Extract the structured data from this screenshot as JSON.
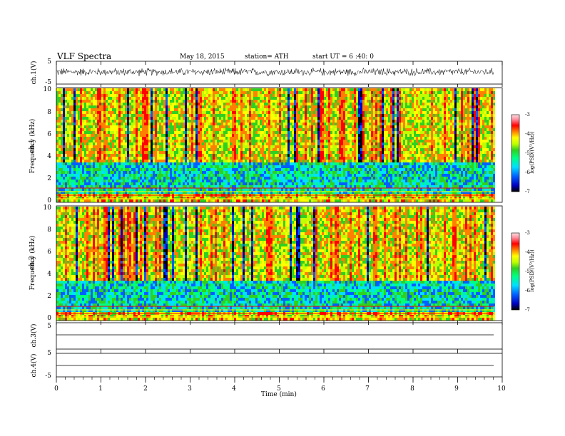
{
  "header": {
    "title": "VLF  Spectra",
    "date": "May 18, 2015",
    "station": "station= ATH",
    "start": "start  UT  =   6  :40: 0"
  },
  "axes": {
    "ch1_label": "ch.1(V)",
    "spec1_label": "Frequency  (kHz)",
    "spec1_ch": "ch.1",
    "spec2_label": "Frequency  (kHz)",
    "spec2_ch": "ch.2",
    "ch3_label": "ch.3(V)",
    "ch4_label": "ch.4(V)",
    "xlabel": "Time  (min)",
    "colorbar_label": "log(PSD/(V²/Hz))"
  },
  "ticks": {
    "wave_top": "5",
    "wave_bottom": "-5",
    "freq": [
      "0",
      "2",
      "4",
      "6",
      "8",
      "10"
    ],
    "x": [
      "0",
      "1",
      "2",
      "3",
      "4",
      "5",
      "6",
      "7",
      "8",
      "9",
      "10"
    ],
    "colorbar": [
      "-3",
      "-4",
      "-5",
      "-6",
      "-7"
    ]
  },
  "colors": {
    "colormap": [
      "#000000",
      "#0000c0",
      "#0060ff",
      "#00e0ff",
      "#00ff80",
      "#30d020",
      "#c0ff00",
      "#ffff00",
      "#ff8000",
      "#ff0000",
      "#ff90a0",
      "#ffe0e0"
    ]
  },
  "chart_data": [
    {
      "type": "line",
      "title": "ch.1(V)",
      "xlabel": "Time  (min)",
      "ylabel": "ch.1(V)",
      "xlim": [
        0,
        10
      ],
      "ylim": [
        -5,
        5
      ],
      "series": [
        {
          "name": "ch.1",
          "values_desc": "noisy waveform, roughly ±1.5 V",
          "mean": 0,
          "amplitude": 1.5
        }
      ]
    },
    {
      "type": "heatmap",
      "title": "ch.1",
      "xlabel": "Time  (min)",
      "ylabel": "Frequency  (kHz)",
      "xlim": [
        0,
        9.8
      ],
      "ylim": [
        0,
        10
      ],
      "colorbar": {
        "label": "log(PSD/(V²/Hz))",
        "range": [
          -7,
          -3
        ],
        "ticks": [
          -3,
          -4,
          -5,
          -6,
          -7
        ]
      }
    },
    {
      "type": "heatmap",
      "title": "ch.2",
      "xlabel": "Time  (min)",
      "ylabel": "Frequency  (kHz)",
      "xlim": [
        0,
        9.8
      ],
      "ylim": [
        0,
        10
      ],
      "colorbar": {
        "label": "log(PSD/(V²/Hz))",
        "range": [
          -7,
          -3
        ],
        "ticks": [
          -3,
          -4,
          -5,
          -6,
          -7
        ]
      }
    },
    {
      "type": "line",
      "title": "ch.3(V)",
      "ylabel": "ch.3(V)",
      "xlim": [
        0,
        10
      ],
      "ylim": [
        -5,
        5
      ],
      "series": [
        {
          "name": "ch.3",
          "values": [
            0,
            0
          ]
        }
      ]
    },
    {
      "type": "line",
      "title": "ch.4(V)",
      "ylabel": "ch.4(V)",
      "xlim": [
        0,
        10
      ],
      "ylim": [
        -5,
        5
      ],
      "series": [
        {
          "name": "ch.4",
          "values": [
            0,
            0
          ]
        }
      ]
    }
  ]
}
